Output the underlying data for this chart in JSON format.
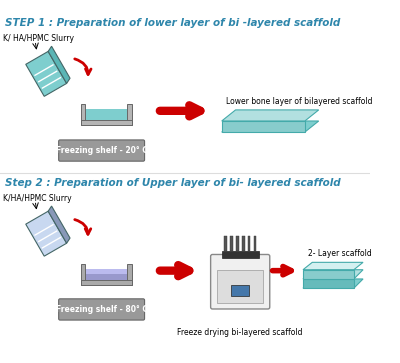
{
  "background_color": "#ffffff",
  "step1": {
    "title": "STEP 1 : Preparation of lower layer of bi -layered scaffold",
    "title_color": "#2e86ab",
    "title_fontsize": 7.5,
    "label_slurry": "K/ HA/HPMC Slurry",
    "label_freezing": "Freezing shelf - 20° C",
    "label_result": "Lower bone layer of bilayered scaffold"
  },
  "step2": {
    "title": "Step 2 : Preparation of Upper layer of bi- layered scaffold",
    "title_color": "#2e86ab",
    "title_fontsize": 7.5,
    "label_slurry": "K/HA/HPMC Slurry",
    "label_freezing": "Freezing shelf - 80° C",
    "label_freeze_dry": "Freeze drying bi-layered scaffold",
    "label_result": "2- Layer scaffold"
  },
  "arrow_color": "#cc0000",
  "teal_light": "#b2e0e0",
  "teal_mid": "#7ecece",
  "teal_top": "#d4f0f0",
  "shelf_color": "#999999",
  "shelf_dark": "#666666"
}
